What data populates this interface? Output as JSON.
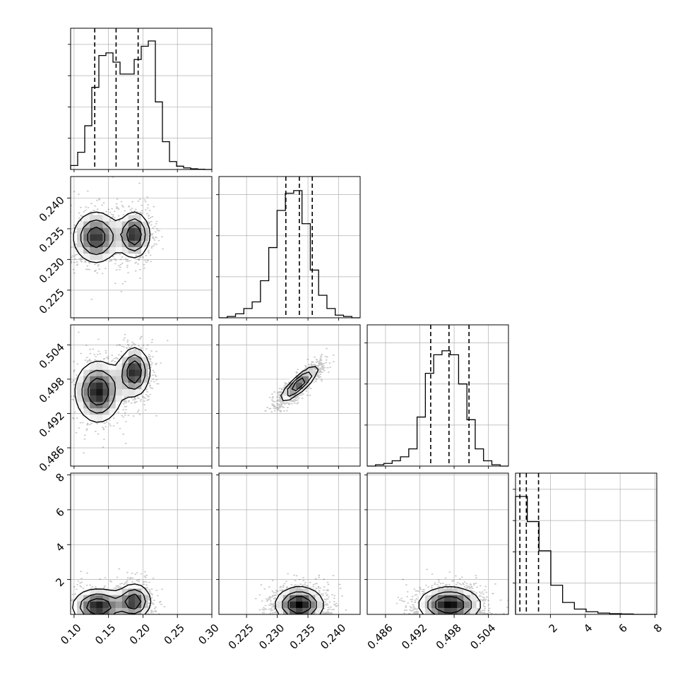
{
  "chart_data": {
    "type": "corner",
    "variables": [
      {
        "ticks": [
          0.1,
          0.15,
          0.2,
          0.25,
          0.3
        ],
        "tick_labels": [
          "0.10",
          "0.15",
          "0.20",
          "0.25",
          "0.30"
        ],
        "range": [
          0.095,
          0.3
        ],
        "quantiles": [
          0.13,
          0.161,
          0.193
        ],
        "hist": [
          0.03,
          0.13,
          0.33,
          0.62,
          0.86,
          0.88,
          0.81,
          0.72,
          0.72,
          0.83,
          0.93,
          0.97,
          0.51,
          0.21,
          0.06,
          0.025,
          0.012,
          0.005,
          0.002,
          0.0
        ]
      },
      {
        "ticks": [
          0.225,
          0.23,
          0.235,
          0.24
        ],
        "tick_labels": [
          "0.225",
          "0.230",
          "0.235",
          "0.240"
        ],
        "range": [
          0.2205,
          0.2435
        ],
        "quantiles": [
          0.2314,
          0.2336,
          0.2357
        ],
        "hist": [
          0.0,
          0.01,
          0.03,
          0.07,
          0.12,
          0.28,
          0.53,
          0.81,
          0.94,
          0.96,
          0.71,
          0.36,
          0.17,
          0.07,
          0.02,
          0.01,
          0.0
        ]
      },
      {
        "ticks": [
          0.486,
          0.492,
          0.498,
          0.504
        ],
        "tick_labels": [
          "0.486",
          "0.492",
          "0.498",
          "0.504"
        ],
        "range": [
          0.4828,
          0.5075
        ],
        "quantiles": [
          0.4939,
          0.4971,
          0.5006
        ],
        "hist": [
          0.0,
          0.01,
          0.02,
          0.04,
          0.07,
          0.13,
          0.37,
          0.7,
          0.84,
          0.87,
          0.84,
          0.62,
          0.35,
          0.13,
          0.04,
          0.01,
          0.0
        ]
      },
      {
        "ticks": [
          2,
          4,
          6,
          8
        ],
        "tick_labels": [
          "2",
          "4",
          "6",
          "8"
        ],
        "range": [
          0.0,
          8.1
        ],
        "quantiles": [
          0.25,
          0.62,
          1.32
        ],
        "hist": [
          0.89,
          0.7,
          0.48,
          0.22,
          0.09,
          0.04,
          0.02,
          0.01,
          0.005,
          0.003,
          0.0,
          0.0
        ]
      }
    ],
    "panels": [
      {
        "row": 1,
        "col": 0,
        "blobs": [
          {
            "x": 0.132,
            "y": 0.2336,
            "sx": 0.02,
            "sy": 0.0025,
            "w": 1.0
          },
          {
            "x": 0.188,
            "y": 0.234,
            "sx": 0.013,
            "sy": 0.0022,
            "w": 1.05
          }
        ]
      },
      {
        "row": 2,
        "col": 0,
        "blobs": [
          {
            "x": 0.135,
            "y": 0.4958,
            "sx": 0.02,
            "sy": 0.0032,
            "w": 1.0
          },
          {
            "x": 0.188,
            "y": 0.4993,
            "sx": 0.013,
            "sy": 0.0025,
            "w": 1.0
          }
        ]
      },
      {
        "row": 2,
        "col": 1,
        "blobs": [
          {
            "x": 0.2336,
            "y": 0.4972,
            "sx": 0.0018,
            "sy": 0.0018,
            "w": 1.0,
            "rho": 0.85
          }
        ]
      },
      {
        "row": 3,
        "col": 0,
        "blobs": [
          {
            "x": 0.135,
            "y": 0.45,
            "sx": 0.022,
            "sy": 0.6,
            "w": 1.0
          },
          {
            "x": 0.188,
            "y": 0.75,
            "sx": 0.014,
            "sy": 0.6,
            "w": 0.9
          }
        ]
      },
      {
        "row": 3,
        "col": 1,
        "blobs": [
          {
            "x": 0.2336,
            "y": 0.55,
            "sx": 0.0023,
            "sy": 0.6,
            "w": 1.0
          }
        ]
      },
      {
        "row": 3,
        "col": 2,
        "blobs": [
          {
            "x": 0.4972,
            "y": 0.55,
            "sx": 0.0032,
            "sy": 0.6,
            "w": 1.0
          }
        ]
      }
    ],
    "colors": {
      "line": "#000000",
      "grid": "#b0b0b0",
      "points": "#000000"
    }
  }
}
